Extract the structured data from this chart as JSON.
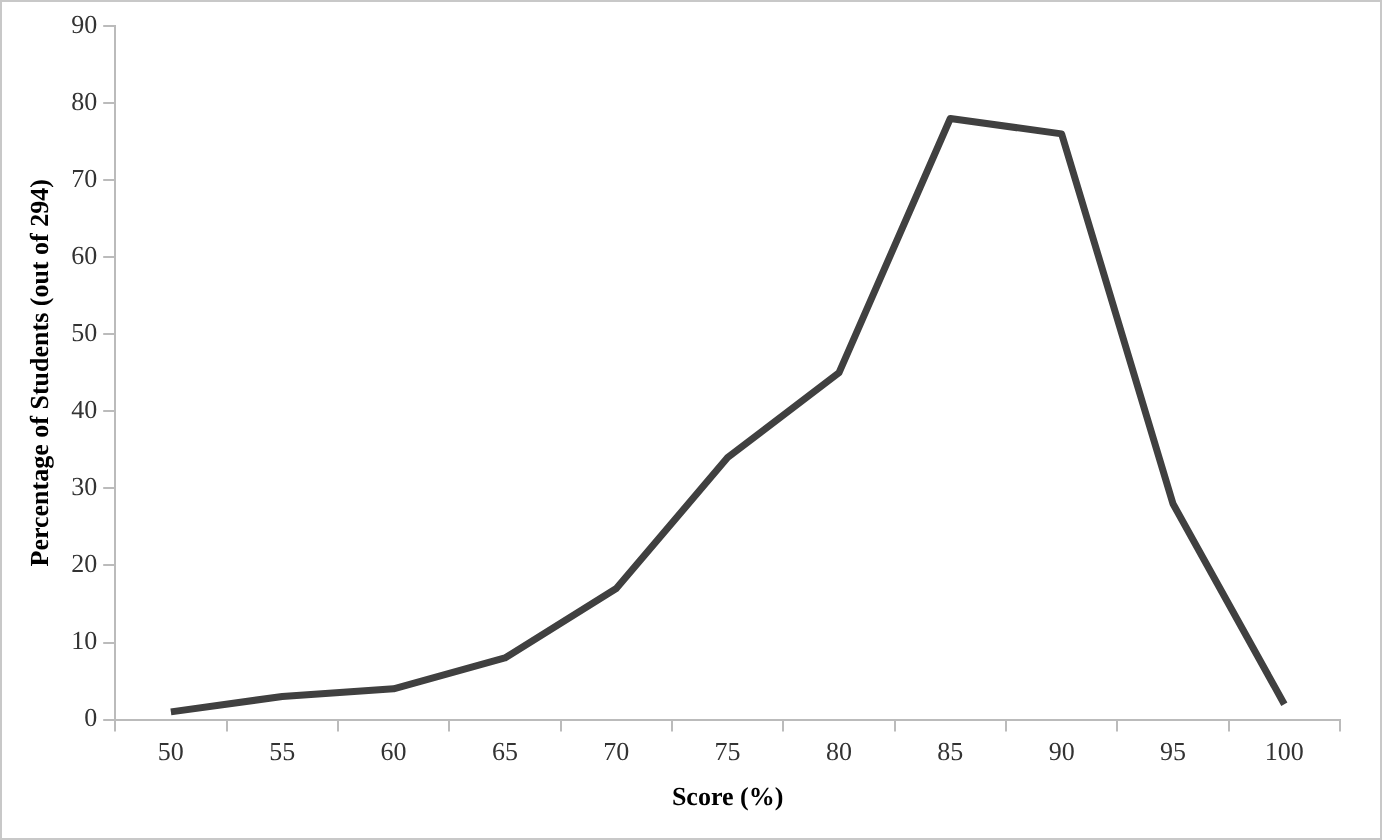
{
  "chart_data": {
    "type": "line",
    "xlabel": "Score (%)",
    "ylabel": "Percentage of Students (out of 294)",
    "categories": [
      "50",
      "55",
      "60",
      "65",
      "70",
      "75",
      "80",
      "85",
      "90",
      "95",
      "100"
    ],
    "series": [
      {
        "color": "#404040",
        "values": [
          1,
          3,
          4,
          8,
          17,
          34,
          45,
          78,
          76,
          28,
          2
        ]
      }
    ],
    "ylim": [
      0,
      90
    ],
    "yticks": [
      0,
      10,
      20,
      30,
      40,
      50,
      60,
      70,
      80,
      90
    ],
    "grid": false,
    "legend": false,
    "marker": "none",
    "line_style": "solid"
  }
}
